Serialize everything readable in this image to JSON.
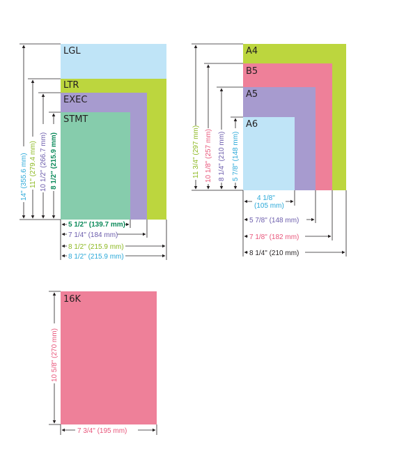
{
  "colors": {
    "lgl": "#bfe4f7",
    "ltr": "#bcd63e",
    "exec": "#a79bcf",
    "stmt": "#86ccac",
    "a4": "#bcd63e",
    "b5": "#ee8099",
    "a5": "#a79bcf",
    "a6": "#bfe4f7",
    "k16": "#ee8099",
    "dim_cyan": "#29a8d8",
    "dim_green": "#8cb820",
    "dim_purple": "#6a5bab",
    "dim_dkgreen": "#0b8a5a",
    "dim_pink": "#e8557a",
    "line": "#231f20"
  },
  "us": {
    "labels": {
      "lgl": "LGL",
      "ltr": "LTR",
      "exec": "EXEC",
      "stmt": "STMT"
    },
    "heights": {
      "lgl": "14\" (355.6 mm)",
      "ltr": "11\" (279.4 mm)",
      "exec": "10 1/2\" (266.7 mm)",
      "stmt": "8 1/2\" (215.9 mm)"
    },
    "widths": {
      "stmt": "5 1/2\" (139.7 mm)",
      "exec": "7 1/4\" (184 mm)",
      "ltr": "8 1/2\" (215.9 mm)",
      "lgl": "8 1/2\" (215.9 mm)"
    }
  },
  "iso": {
    "labels": {
      "a4": "A4",
      "b5": "B5",
      "a5": "A5",
      "a6": "A6"
    },
    "heights": {
      "a4": "11 3/4\" (297 mm)",
      "b5": "10 1/8\" (257 mm)",
      "a5": "8 1/4\" (210 mm)",
      "a6": "5 7/8\" (148 mm)"
    },
    "widths": {
      "a6_line1": "4 1/8\"",
      "a6_line2": "(105 mm)",
      "a5": "5 7/8\" (148 mm)",
      "b5": "7 1/8\" (182 mm)",
      "a4": "8 1/4\" (210 mm)"
    }
  },
  "k16": {
    "label": "16K",
    "height": "10 5/8\" (270 mm)",
    "width": "7 3/4\" (195 mm)"
  }
}
